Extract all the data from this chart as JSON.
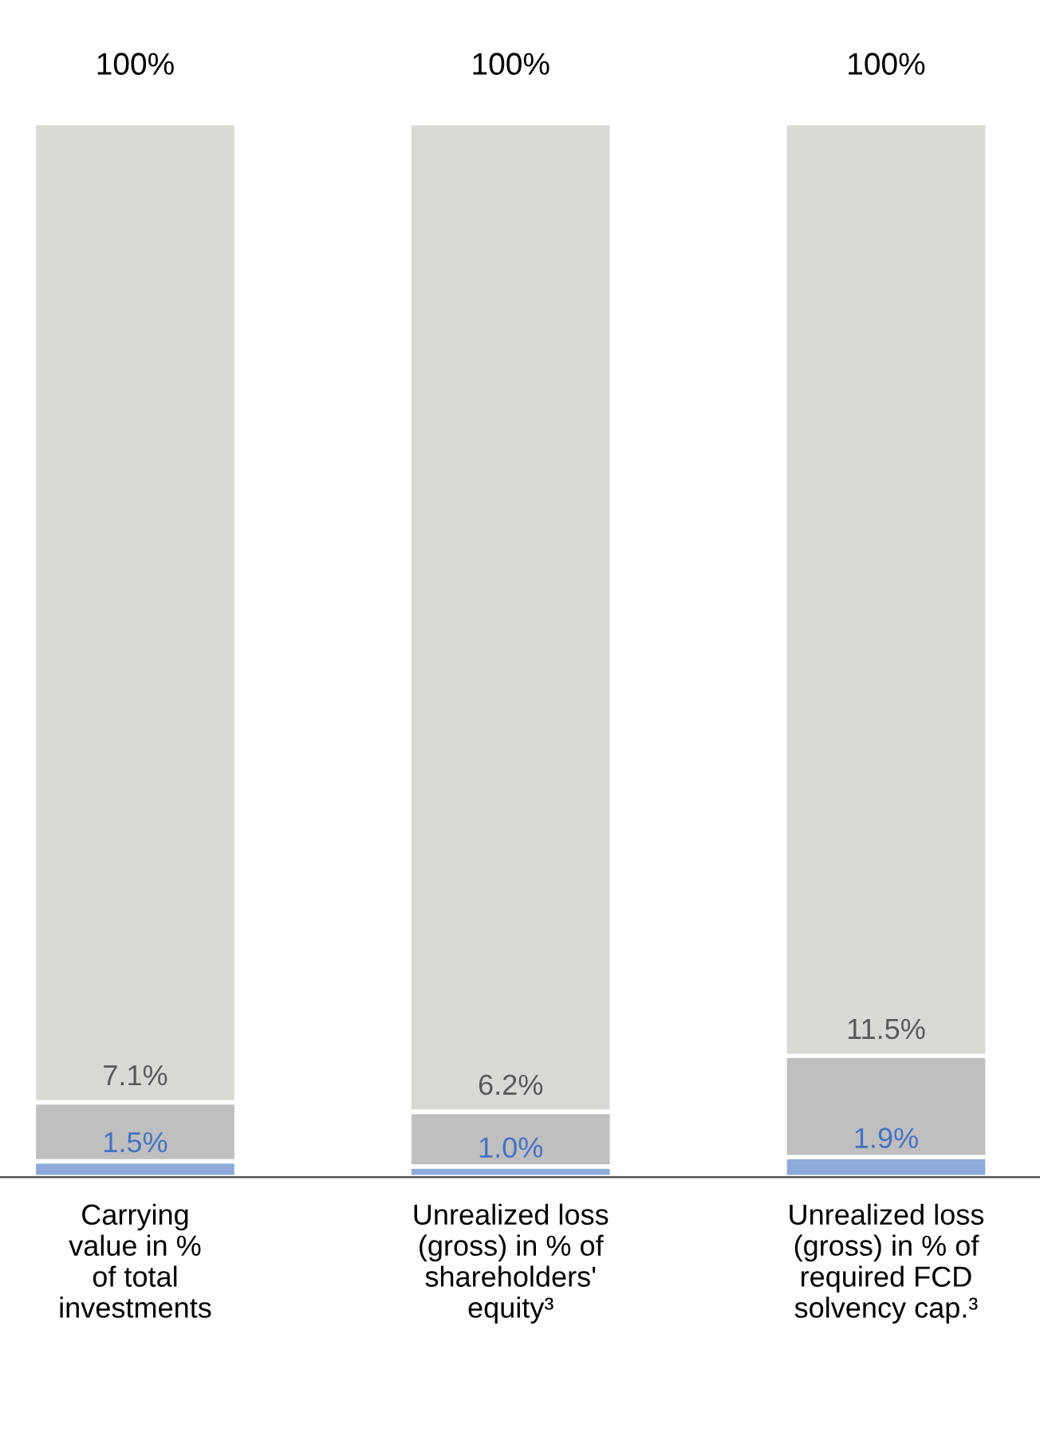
{
  "chart_data": {
    "type": "bar",
    "stacked": true,
    "categories": [
      "Carrying\nvalue in %\nof total\ninvestments",
      "Unrealized loss\n(gross) in % of\nshareholders'\nequity³",
      "Unrealized loss\n(gross) in % of\nrequired FCD\nsolvency cap.³"
    ],
    "series": [
      {
        "color": "#8eaadb",
        "values": [
          1.5,
          1.0,
          1.9
        ],
        "value_labels": [
          "1.5%",
          "1.0%",
          "1.9%"
        ]
      },
      {
        "color": "#bfbfbf",
        "values": [
          5.6,
          5.2,
          9.6
        ]
      },
      {
        "color": "#d9d9d6",
        "values": [
          92.9,
          93.8,
          88.5
        ]
      }
    ],
    "totals": [
      "100%",
      "100%",
      "100%"
    ],
    "annotations": [
      {
        "text": "7.1%",
        "x": "Carrying\nvalue in %\nof total\ninvestments",
        "y": 7.1
      },
      {
        "text": "6.2%",
        "x": "Unrealized loss\n(gross) in % of\nshareholders'\nequity³",
        "y": 6.2
      },
      {
        "text": "11.5%",
        "x": "Unrealized loss\n(gross) in % of\nrequired FCD\nsolvency cap.³",
        "y": 11.5
      }
    ],
    "ylim": [
      0,
      100
    ],
    "tick_labels": "x",
    "grid": false,
    "legend": false
  }
}
